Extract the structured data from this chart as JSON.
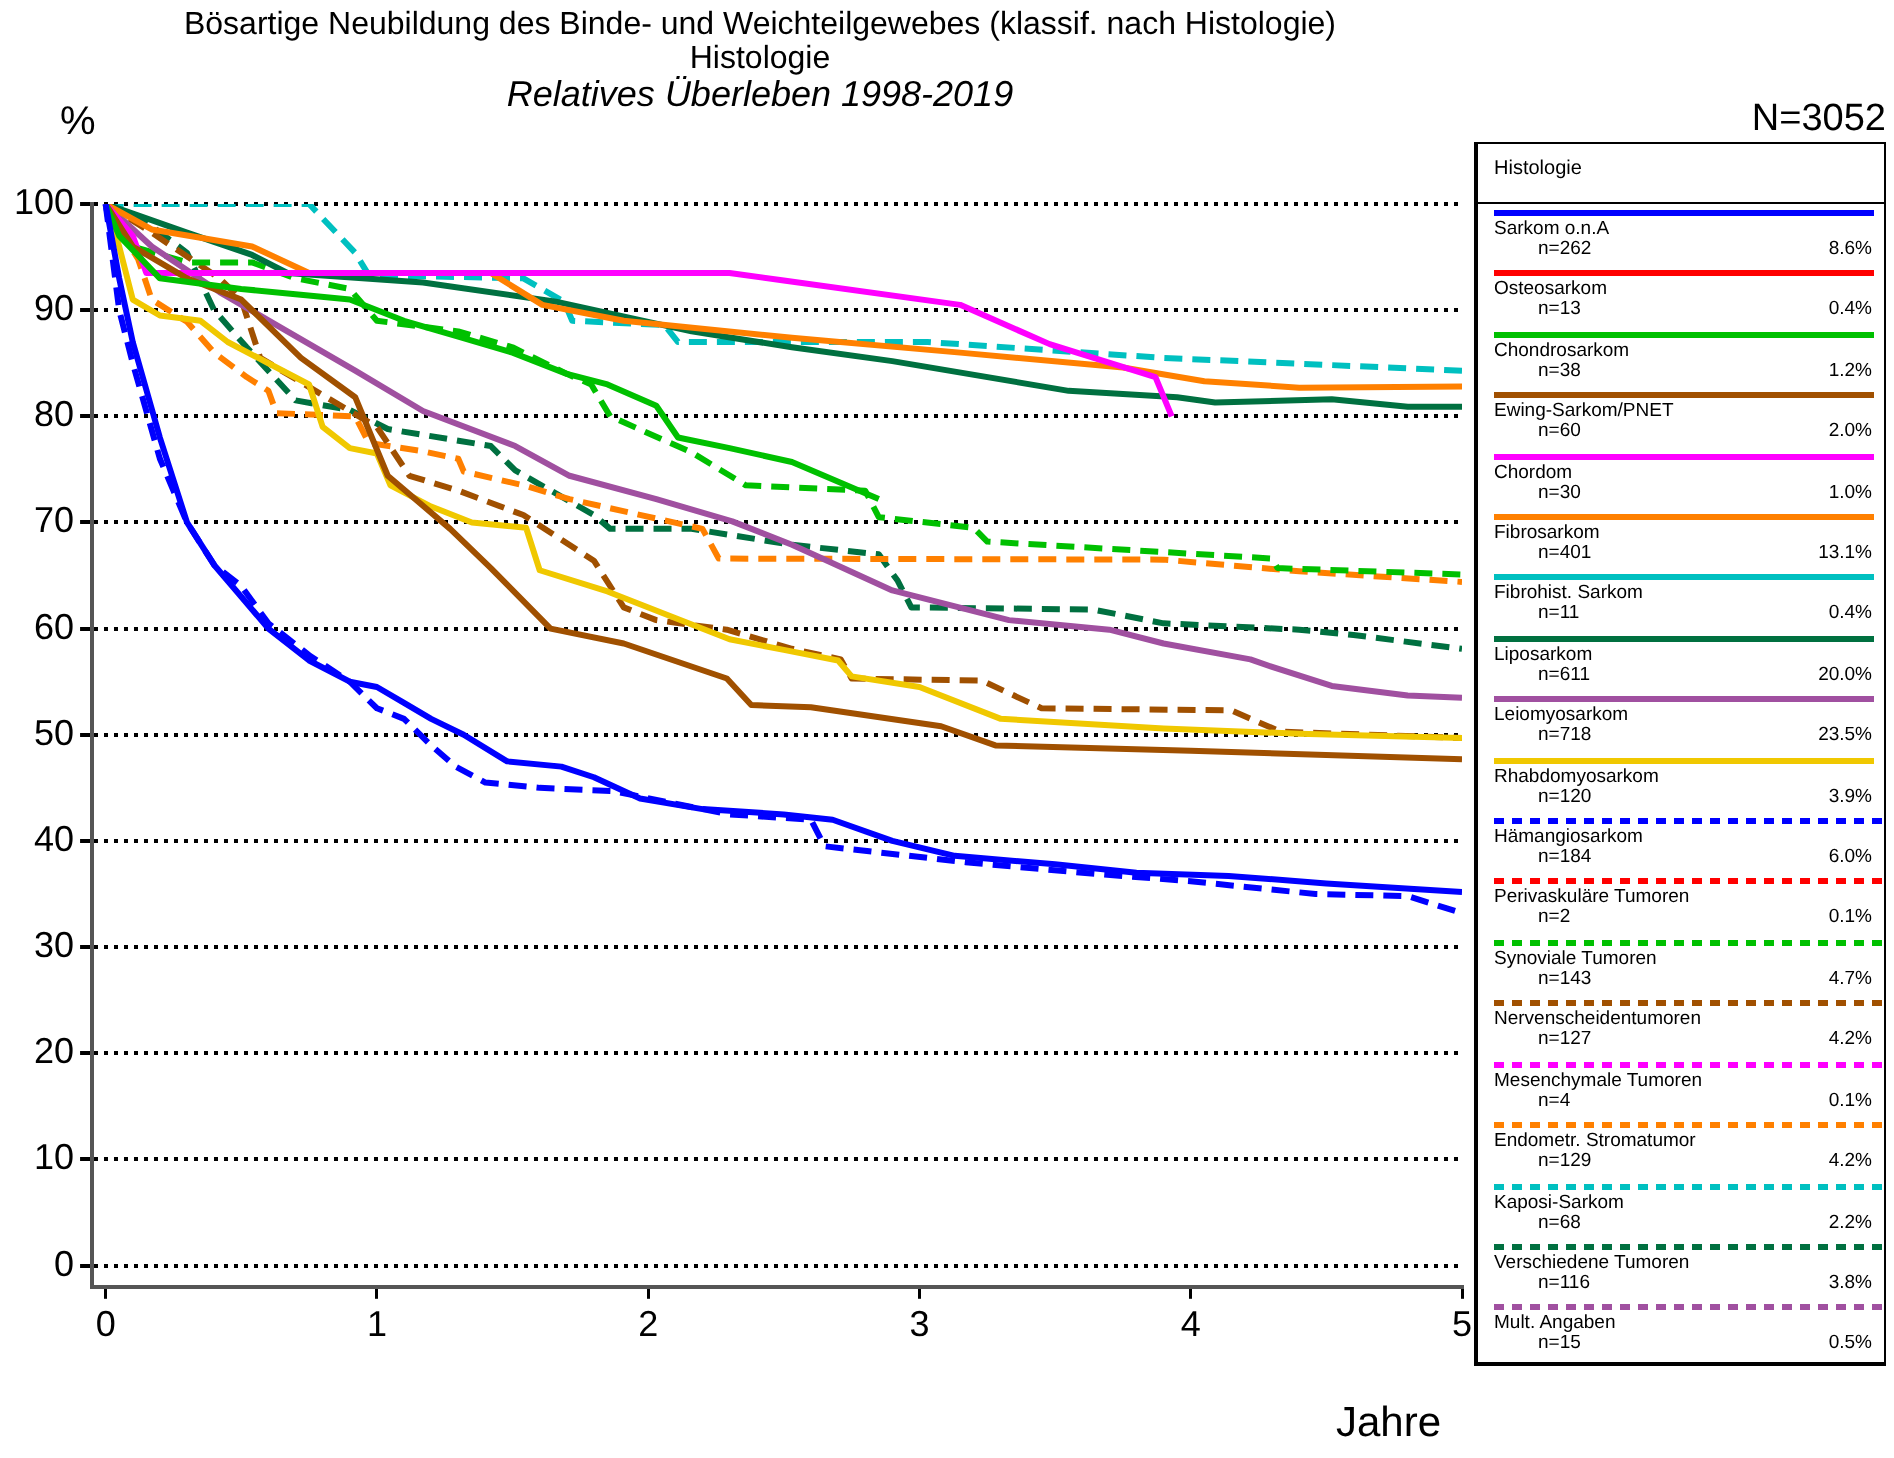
{
  "chart_data": {
    "type": "line",
    "title": "Bösartige Neubildung des Binde- und Weichteilgewebes (klassif. nach Histologie)",
    "subtitle": "Histologie",
    "ylabel": "%",
    "xlabel": "Jahre",
    "legend_title": "Histologie",
    "legend": "right",
    "grid": "y",
    "marker": "none",
    "xlim": [
      -0.05,
      5
    ],
    "ylim": [
      -2,
      100
    ],
    "xticks": [
      0,
      1,
      2,
      3,
      4,
      5
    ],
    "yticks": [
      0,
      10,
      20,
      30,
      40,
      50,
      60,
      70,
      80,
      90,
      100
    ],
    "annotations": [
      "Relatives Überleben 1998-2019",
      "N=3052",
      "n=262",
      "8.6%",
      "n=13",
      "0.4%",
      "n=38",
      "1.2%",
      "n=60",
      "2.0%",
      "n=30",
      "1.0%",
      "n=401",
      "13.1%",
      "n=11",
      "0.4%",
      "n=611",
      "20.0%",
      "n=718",
      "23.5%",
      "n=120",
      "3.9%",
      "n=184",
      "6.0%",
      "n=2",
      "0.1%",
      "n=143",
      "4.7%",
      "n=127",
      "4.2%",
      "n=4",
      "0.1%",
      "n=129",
      "4.2%",
      "n=68",
      "2.2%",
      "n=116",
      "3.8%",
      "n=15",
      "0.5%"
    ],
    "series": [
      {
        "name": "Sarkom o.n.A",
        "color": "#0000ff",
        "line_style": "solid",
        "x": [
          0,
          0.05,
          0.1,
          0.2,
          0.3,
          0.4,
          0.5,
          0.6,
          0.75,
          0.9,
          1.0,
          1.1,
          1.2,
          1.32,
          1.48,
          1.68,
          1.8,
          1.97,
          2.2,
          2.5,
          2.68,
          2.9,
          3.13,
          3.5,
          3.8,
          4.14,
          4.5,
          5.0
        ],
        "values": [
          100,
          93,
          87,
          78,
          70,
          66,
          63,
          60,
          57,
          55,
          54.5,
          53,
          51.5,
          50,
          47.5,
          47,
          46,
          44,
          43,
          42.5,
          42,
          40,
          38.6,
          37.8,
          37,
          36.7,
          36,
          35.2
        ]
      },
      {
        "name": "Osteosarkom",
        "color": "#ff0000",
        "line_style": "solid"
      },
      {
        "name": "Chondrosarkom",
        "color": "#00c000",
        "line_style": "solid",
        "x": [
          0,
          0.05,
          0.2,
          0.5,
          0.7,
          0.9,
          1.1,
          1.3,
          1.5,
          1.7,
          1.85,
          2.03,
          2.11,
          2.3,
          2.53,
          2.85
        ],
        "values": [
          100,
          97,
          93,
          92,
          91.5,
          91,
          89,
          87.5,
          86,
          84,
          83,
          81,
          78,
          77,
          75.7,
          72.2
        ]
      },
      {
        "name": "Ewing-Sarkom/PNET",
        "color": "#a05000",
        "line_style": "solid",
        "x": [
          0,
          0.1,
          0.3,
          0.5,
          0.72,
          0.92,
          1.04,
          1.27,
          1.42,
          1.64,
          1.91,
          2.29,
          2.38,
          2.6,
          3.08,
          3.28,
          4.0,
          5.0
        ],
        "values": [
          100,
          96,
          93,
          91,
          85.5,
          81.8,
          74.4,
          69.4,
          65.7,
          60,
          58.6,
          55.3,
          52.8,
          52.6,
          50.8,
          49,
          48.5,
          47.7
        ]
      },
      {
        "name": "Chordom",
        "color": "#ff00ff",
        "line_style": "solid",
        "x": [
          0,
          0.1,
          0.15,
          2.3,
          2.5,
          3.15,
          3.48,
          3.87,
          3.93
        ],
        "values": [
          100,
          97,
          93.5,
          93.5,
          92.8,
          90.5,
          86.8,
          83.7,
          80
        ]
      },
      {
        "name": "Fibrosarkom",
        "color": "#ff8000",
        "line_style": "solid",
        "x": [
          0,
          0.17,
          0.54,
          0.75,
          1.42,
          1.61,
          1.91,
          2.53,
          3.15,
          3.75,
          4.05,
          4.4,
          5.0
        ],
        "values": [
          100,
          97.6,
          96,
          93.5,
          93.5,
          90.5,
          89,
          87.4,
          86,
          84.6,
          83.3,
          82.7,
          82.8
        ]
      },
      {
        "name": "Fibrohist. Sarkom",
        "color": "#00c0c0",
        "line_style": "solid"
      },
      {
        "name": "Liposarkom",
        "color": "#007040",
        "line_style": "solid",
        "x": [
          0,
          0.3,
          0.54,
          0.67,
          1.17,
          1.66,
          2.16,
          2.53,
          2.9,
          3.55,
          3.95,
          4.09,
          4.52,
          4.8,
          5.0
        ],
        "values": [
          100,
          97.3,
          95.2,
          93.5,
          92.6,
          90.8,
          88,
          86.5,
          85.2,
          82.4,
          81.8,
          81.3,
          81.6,
          80.9,
          80.9
        ]
      },
      {
        "name": "Leiomyosarkom",
        "color": "#a050a0",
        "line_style": "solid",
        "x": [
          0,
          0.17,
          0.42,
          0.67,
          0.92,
          1.17,
          1.51,
          1.71,
          2.03,
          2.31,
          2.53,
          2.66,
          2.9,
          3.33,
          3.7,
          3.9,
          4.22,
          4.3,
          4.52,
          4.8,
          5.0
        ],
        "values": [
          100,
          96,
          91.7,
          88,
          84.3,
          80.5,
          77.2,
          74.4,
          72.2,
          70.1,
          67.9,
          66.4,
          63.6,
          60.8,
          59.9,
          58.6,
          57.1,
          56.4,
          54.6,
          53.7,
          53.5
        ]
      },
      {
        "name": "Rhabdomyosarkom",
        "color": "#f0c800",
        "line_style": "solid",
        "x": [
          0,
          0.05,
          0.1,
          0.2,
          0.35,
          0.45,
          0.6,
          0.75,
          0.8,
          0.9,
          1.0,
          1.05,
          1.2,
          1.35,
          1.55,
          1.6,
          1.85,
          2.05,
          2.3,
          2.5,
          2.7,
          2.75,
          3.0,
          3.3,
          3.9,
          4.4,
          5.0
        ],
        "values": [
          100,
          96,
          91,
          89.5,
          89,
          87,
          85,
          83,
          79,
          77,
          76.5,
          73.5,
          71.5,
          70,
          69.5,
          65.5,
          63.5,
          61.5,
          59,
          58,
          57,
          55.5,
          54.5,
          51.5,
          50.6,
          50.1,
          49.7
        ]
      },
      {
        "name": "Hämangiosarkom",
        "color": "#0000ff",
        "line_style": "dashed",
        "x": [
          0,
          0.05,
          0.1,
          0.2,
          0.3,
          0.4,
          0.5,
          0.6,
          0.75,
          0.9,
          1.0,
          1.1,
          1.2,
          1.29,
          1.4,
          1.6,
          1.87,
          2.1,
          2.3,
          2.6,
          2.65,
          3.17,
          3.6,
          4.0,
          4.46,
          4.8,
          5.0
        ],
        "values": [
          100,
          90,
          85,
          76,
          70,
          66,
          64,
          60.5,
          57.5,
          55,
          52.5,
          51.5,
          49,
          47,
          45.5,
          45,
          44.7,
          43.5,
          42.5,
          42,
          39.5,
          38,
          37,
          36.2,
          35,
          34.8,
          33.2
        ]
      },
      {
        "name": "Perivaskuläre Tumoren",
        "color": "#ff0000",
        "line_style": "dashed"
      },
      {
        "name": "Synoviale Tumoren",
        "color": "#00c000",
        "line_style": "dashed",
        "x": [
          0,
          0.1,
          0.3,
          0.54,
          0.7,
          0.9,
          1.0,
          1.3,
          1.5,
          1.7,
          1.79,
          1.86,
          2.16,
          2.36,
          2.8,
          2.85,
          3.2,
          3.25,
          4.3,
          4.32,
          5.0
        ],
        "values": [
          100,
          96,
          94.5,
          94.5,
          93,
          92,
          89,
          88,
          86.5,
          84,
          83,
          80,
          76.6,
          73.5,
          73,
          70.5,
          69.5,
          68.2,
          66.6,
          65.7,
          65.1
        ]
      },
      {
        "name": "Nervenscheidentumoren",
        "color": "#a05000",
        "line_style": "dashed",
        "x": [
          0,
          0.17,
          0.42,
          0.5,
          0.57,
          0.8,
          1.0,
          1.12,
          1.3,
          1.54,
          1.8,
          1.91,
          2.03,
          2.29,
          2.53,
          2.71,
          2.75,
          3.23,
          3.45,
          4.15,
          4.33,
          5.0
        ],
        "values": [
          100,
          97.3,
          93,
          91,
          85.5,
          82,
          79,
          74.4,
          73,
          70.7,
          66.4,
          62,
          60.8,
          59.9,
          58.1,
          57.1,
          55.3,
          55.1,
          52.5,
          52.3,
          50.3,
          49.7
        ]
      },
      {
        "name": "Mesenchymale Tumoren",
        "color": "#ff00ff",
        "line_style": "dashed"
      },
      {
        "name": "Endometr. Stromatumor",
        "color": "#ff8000",
        "line_style": "dashed",
        "x": [
          0,
          0.03,
          0.12,
          0.17,
          0.3,
          0.4,
          0.52,
          0.6,
          0.63,
          0.92,
          0.97,
          1.17,
          1.3,
          1.32,
          1.54,
          1.71,
          2.2,
          2.26,
          3.9,
          4.4,
          5.0
        ],
        "values": [
          100,
          98.5,
          94.8,
          91,
          88.9,
          86,
          83.7,
          82.4,
          80.3,
          80,
          77.5,
          76.7,
          76,
          74.8,
          73.5,
          72.2,
          69.4,
          66.6,
          66.5,
          65.4,
          64.4
        ]
      },
      {
        "name": "Kaposi-Sarkom",
        "color": "#00c0c0",
        "line_style": "dashed",
        "x": [
          0,
          0.75,
          0.92,
          0.97,
          1.54,
          1.69,
          1.72,
          2.06,
          2.11,
          3.03,
          3.9,
          5.0
        ],
        "values": [
          100,
          100,
          95.4,
          93.3,
          93,
          90.8,
          89,
          88.6,
          87,
          87,
          85.5,
          84.3
        ]
      },
      {
        "name": "Verschiedene Tumoren",
        "color": "#007040",
        "line_style": "dashed",
        "x": [
          0,
          0.17,
          0.3,
          0.4,
          0.52,
          0.7,
          0.9,
          1.04,
          1.42,
          1.51,
          1.8,
          1.86,
          2.16,
          2.53,
          2.85,
          2.92,
          2.97,
          3.64,
          3.9,
          4.4,
          4.6,
          5.0
        ],
        "values": [
          100,
          97.9,
          95.4,
          90,
          86.5,
          81.5,
          80.6,
          78.8,
          77.2,
          74.9,
          70.7,
          69.4,
          69.4,
          67.9,
          67,
          64.5,
          62,
          61.8,
          60.5,
          59.9,
          59.4,
          58.1
        ]
      },
      {
        "name": "Mult. Angaben",
        "color": "#a050a0",
        "line_style": "dashed"
      }
    ]
  }
}
